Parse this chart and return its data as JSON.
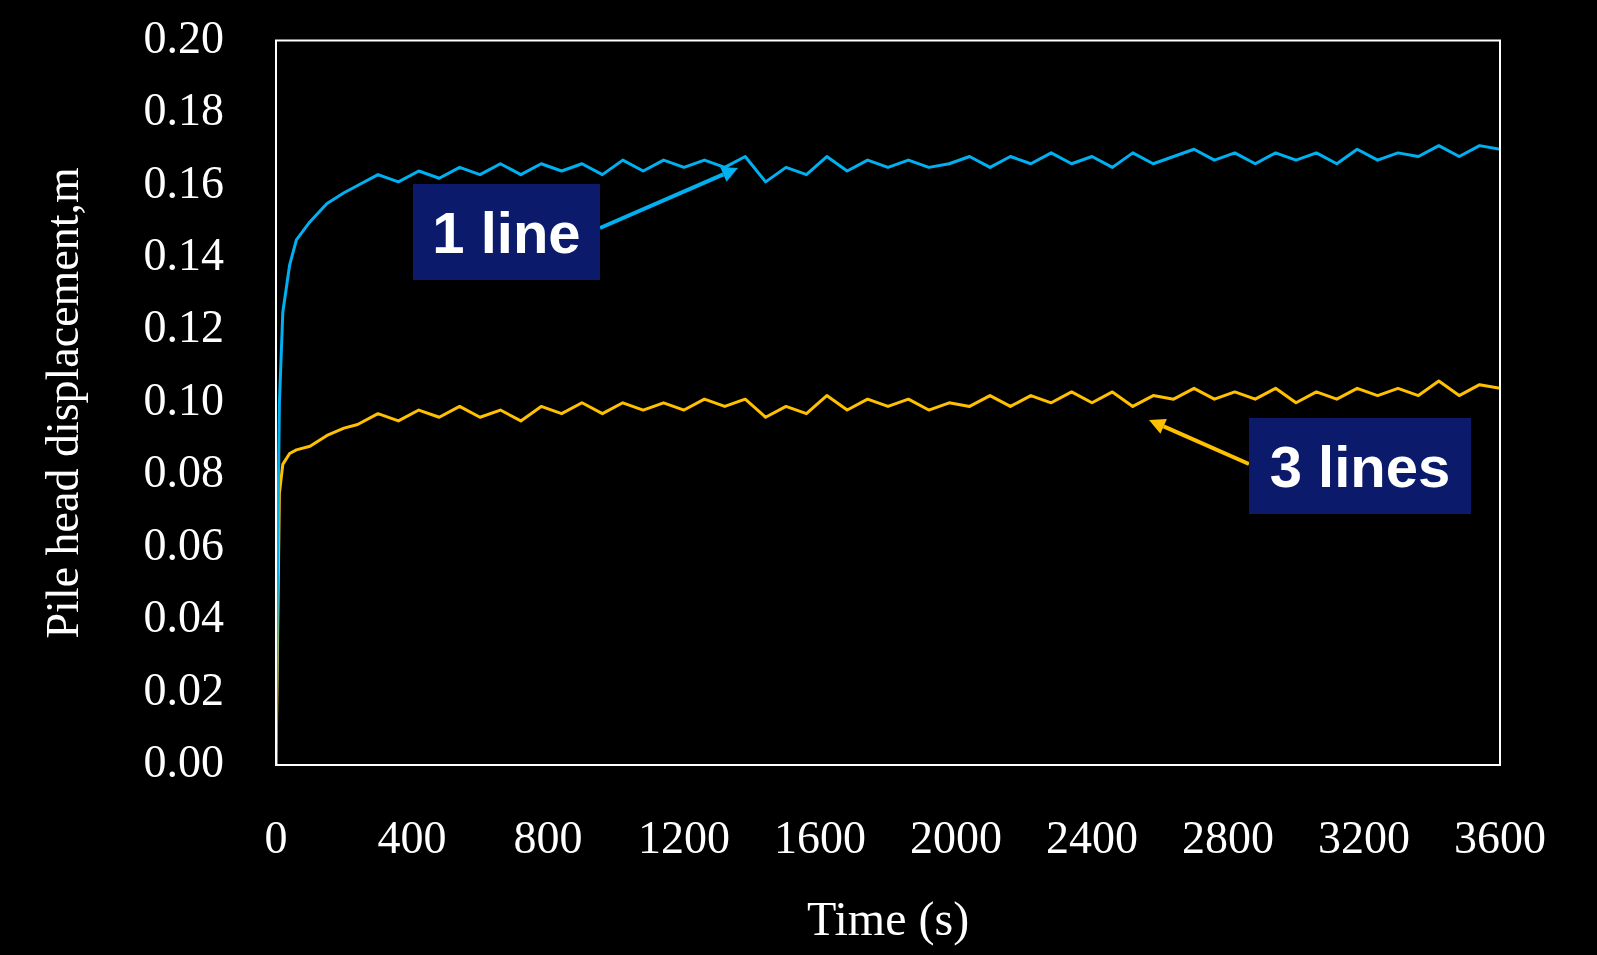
{
  "chart_data": {
    "type": "line",
    "xlabel": "Time (s)",
    "ylabel": "Pile head displacement,m",
    "x": [
      0,
      5,
      10,
      20,
      40,
      60,
      100,
      150,
      200,
      240,
      300,
      360,
      420,
      480,
      540,
      600,
      660,
      720,
      780,
      840,
      900,
      960,
      1020,
      1080,
      1140,
      1200,
      1260,
      1320,
      1380,
      1440,
      1500,
      1560,
      1620,
      1680,
      1740,
      1800,
      1860,
      1920,
      1980,
      2040,
      2100,
      2160,
      2220,
      2280,
      2340,
      2400,
      2460,
      2520,
      2580,
      2640,
      2700,
      2760,
      2820,
      2880,
      2940,
      3000,
      3060,
      3120,
      3180,
      3240,
      3300,
      3360,
      3420,
      3480,
      3540,
      3600
    ],
    "series": [
      {
        "name": "1 line",
        "color": "#00b0f0",
        "values": [
          0,
          0.06,
          0.1,
          0.125,
          0.138,
          0.145,
          0.15,
          0.155,
          0.158,
          0.16,
          0.163,
          0.161,
          0.164,
          0.162,
          0.165,
          0.163,
          0.166,
          0.163,
          0.166,
          0.164,
          0.166,
          0.163,
          0.167,
          0.164,
          0.167,
          0.165,
          0.167,
          0.165,
          0.168,
          0.161,
          0.165,
          0.163,
          0.168,
          0.164,
          0.167,
          0.165,
          0.167,
          0.165,
          0.166,
          0.168,
          0.165,
          0.168,
          0.166,
          0.169,
          0.166,
          0.168,
          0.165,
          0.169,
          0.166,
          0.168,
          0.17,
          0.167,
          0.169,
          0.166,
          0.169,
          0.167,
          0.169,
          0.166,
          0.17,
          0.167,
          0.169,
          0.168,
          0.171,
          0.168,
          0.171,
          0.17
        ]
      },
      {
        "name": "3 lines",
        "color": "#ffc000",
        "values": [
          0,
          null,
          0.075,
          0.083,
          0.086,
          0.087,
          0.088,
          0.091,
          0.093,
          0.094,
          0.097,
          0.095,
          0.098,
          0.096,
          0.099,
          0.096,
          0.098,
          0.095,
          0.099,
          0.097,
          0.1,
          0.097,
          0.1,
          0.098,
          0.1,
          0.098,
          0.101,
          0.099,
          0.101,
          0.096,
          0.099,
          0.097,
          0.102,
          0.098,
          0.101,
          0.099,
          0.101,
          0.098,
          0.1,
          0.099,
          0.102,
          0.099,
          0.102,
          0.1,
          0.103,
          0.1,
          0.103,
          0.099,
          0.102,
          0.101,
          0.104,
          0.101,
          0.103,
          0.101,
          0.104,
          0.1,
          0.103,
          0.101,
          0.104,
          0.102,
          0.104,
          0.102,
          0.106,
          0.102,
          0.105,
          0.104
        ]
      }
    ],
    "xlim": [
      0,
      3600
    ],
    "xticks": [
      0,
      400,
      800,
      1200,
      1600,
      2000,
      2400,
      2800,
      3200,
      3600
    ],
    "ylim": [
      0,
      0.2
    ],
    "yticks": [
      {
        "value": 0,
        "label": "0.00"
      },
      {
        "value": 0.02,
        "label": "0.02"
      },
      {
        "value": 0.04,
        "label": "0.04"
      },
      {
        "value": 0.06,
        "label": "0.06"
      },
      {
        "value": 0.08,
        "label": "0.08"
      },
      {
        "value": 0.1,
        "label": "0.10"
      },
      {
        "value": 0.12,
        "label": "0.12"
      },
      {
        "value": 0.14,
        "label": "0.14"
      },
      {
        "value": 0.16,
        "label": "0.16"
      },
      {
        "value": 0.18,
        "label": "0.18"
      },
      {
        "value": 0.2,
        "label": "0.20"
      }
    ]
  }
}
